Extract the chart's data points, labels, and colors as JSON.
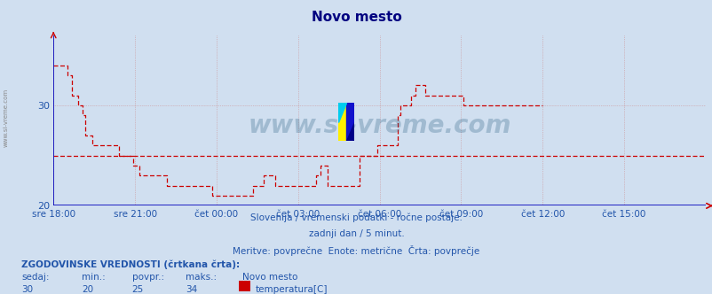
{
  "title": "Novo mesto",
  "title_color": "#000080",
  "background_color": "#d0dff0",
  "plot_bg_color": "#d0dff0",
  "line_color": "#cc0000",
  "avg_value": 25,
  "ymin": 20,
  "ymax": 37,
  "yticks": [
    20,
    30
  ],
  "grid_color": "#cc8888",
  "watermark": "www.si-vreme.com",
  "subtitle1": "Slovenija / vremenski podatki - ročne postaje.",
  "subtitle2": "zadnji dan / 5 minut.",
  "subtitle3": "Meritve: povprečne  Enote: metrične  Črta: povprečje",
  "subtitle_color": "#2255aa",
  "legend_title": "ZGODOVINSKE VREDNOSTI (črtkana črta):",
  "legend_headers": [
    "sedaj:",
    "min.:",
    "povpr.:",
    "maks.:",
    "Novo mesto"
  ],
  "legend_values": [
    "30",
    "20",
    "25",
    "34"
  ],
  "legend_series": "temperatura[C]",
  "legend_color": "#2255aa",
  "legend_swatch": "#cc0000",
  "xtick_labels": [
    "sre 18:00",
    "sre 21:00",
    "čet 00:00",
    "čet 03:00",
    "čet 06:00",
    "čet 09:00",
    "čet 12:00",
    "čet 15:00"
  ],
  "xtick_positions": [
    0,
    36,
    72,
    108,
    144,
    180,
    216,
    252
  ],
  "total_points": 288,
  "left_margin_label": "www.si-vreme.com",
  "temperature_data": [
    34,
    34,
    34,
    34,
    34,
    34,
    33,
    33,
    31,
    31,
    31,
    30,
    30,
    29,
    27,
    27,
    27,
    26,
    26,
    26,
    26,
    26,
    26,
    26,
    26,
    26,
    26,
    26,
    26,
    25,
    25,
    25,
    25,
    25,
    25,
    24,
    24,
    24,
    23,
    23,
    23,
    23,
    23,
    23,
    23,
    23,
    23,
    23,
    23,
    23,
    22,
    22,
    22,
    22,
    22,
    22,
    22,
    22,
    22,
    22,
    22,
    22,
    22,
    22,
    22,
    22,
    22,
    22,
    22,
    22,
    21,
    21,
    21,
    21,
    21,
    21,
    21,
    21,
    21,
    21,
    21,
    21,
    21,
    21,
    21,
    21,
    21,
    21,
    22,
    22,
    22,
    22,
    22,
    23,
    23,
    23,
    23,
    23,
    22,
    22,
    22,
    22,
    22,
    22,
    22,
    22,
    22,
    22,
    22,
    22,
    22,
    22,
    22,
    22,
    22,
    22,
    23,
    23,
    24,
    24,
    24,
    22,
    22,
    22,
    22,
    22,
    22,
    22,
    22,
    22,
    22,
    22,
    22,
    22,
    22,
    25,
    25,
    25,
    25,
    25,
    25,
    25,
    25,
    26,
    26,
    26,
    26,
    26,
    26,
    26,
    26,
    26,
    29,
    30,
    30,
    30,
    30,
    30,
    31,
    31,
    32,
    32,
    32,
    32,
    31,
    31,
    31,
    31,
    31,
    31,
    31,
    31,
    31,
    31,
    31,
    31,
    31,
    31,
    31,
    31,
    31,
    30,
    30,
    30,
    30,
    30,
    30,
    30,
    30,
    30,
    30,
    30,
    30,
    30,
    30,
    30,
    30,
    30,
    30,
    30,
    30,
    30,
    30,
    30,
    30,
    30,
    30,
    30,
    30,
    30,
    30,
    30,
    30,
    30,
    30,
    30,
    30
  ]
}
